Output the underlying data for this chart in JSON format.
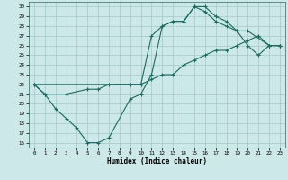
{
  "xlabel": "Humidex (Indice chaleur)",
  "bg_color": "#cce8e8",
  "grid_color": "#aacccc",
  "line_color": "#1a6b60",
  "xlim": [
    -0.5,
    23.5
  ],
  "ylim": [
    15.5,
    30.5
  ],
  "yticks": [
    16,
    17,
    18,
    19,
    20,
    21,
    22,
    23,
    24,
    25,
    26,
    27,
    28,
    29,
    30
  ],
  "xticks": [
    0,
    1,
    2,
    3,
    4,
    5,
    6,
    7,
    8,
    9,
    10,
    11,
    12,
    13,
    14,
    15,
    16,
    17,
    18,
    19,
    20,
    21,
    22,
    23
  ],
  "series": [
    {
      "x": [
        0,
        1,
        2,
        3,
        4,
        5,
        6,
        7,
        9,
        10,
        11,
        12,
        13,
        14,
        15,
        16,
        17,
        18,
        19,
        20,
        21,
        22,
        23
      ],
      "y": [
        22,
        21,
        19.5,
        18.5,
        17.5,
        16,
        16,
        16.5,
        20.5,
        21,
        23,
        28,
        28.5,
        28.5,
        30,
        30,
        29,
        28.5,
        27.5,
        26,
        25,
        26,
        26
      ]
    },
    {
      "x": [
        0,
        1,
        3,
        5,
        6,
        7,
        9,
        10,
        11,
        12,
        13,
        14,
        15,
        16,
        17,
        18,
        19,
        20,
        21,
        22,
        23
      ],
      "y": [
        22,
        21,
        21,
        21.5,
        21.5,
        22,
        22,
        22,
        22.5,
        23,
        23,
        24,
        24.5,
        25,
        25.5,
        25.5,
        26,
        26.5,
        27,
        26,
        26
      ]
    },
    {
      "x": [
        0,
        10,
        11,
        12,
        13,
        14,
        15,
        16,
        17,
        18,
        19,
        20,
        22,
        23
      ],
      "y": [
        22,
        22,
        27,
        28,
        28.5,
        28.5,
        30,
        29.5,
        28.5,
        28,
        27.5,
        27.5,
        26,
        26
      ]
    }
  ]
}
